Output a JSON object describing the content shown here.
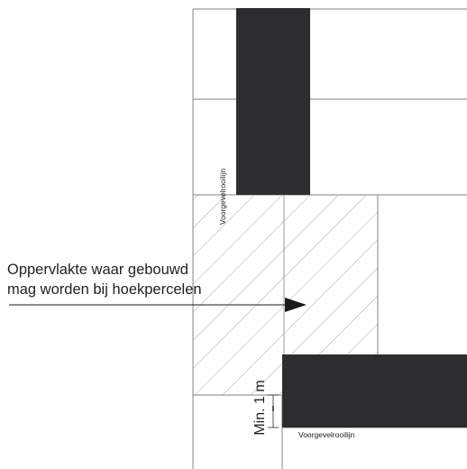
{
  "labels": {
    "area_line1": "Oppervlakte waar gebouwd",
    "area_line2": "mag worden bij hoekpercelen",
    "facade_line_top": "Voorgevelrooilijn",
    "facade_line_bottom": "Voorgevelrooilijn",
    "min_distance": "Min. 1 m"
  },
  "colors": {
    "building": "#2d2d2f",
    "lines": "#9a9a9a",
    "hatch": "#a8a8a8",
    "arrow": "#1a1a1a"
  }
}
